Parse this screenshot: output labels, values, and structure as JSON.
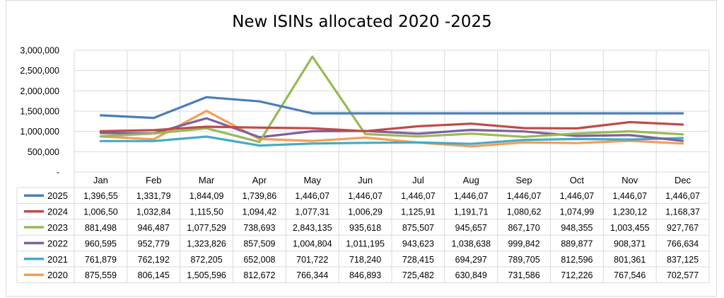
{
  "chart_data": {
    "type": "line",
    "title": "New ISINs allocated 2020 -2025",
    "xlabel": "",
    "ylabel": "",
    "categories": [
      "Jan",
      "Feb",
      "Mar",
      "Apr",
      "May",
      "Jun",
      "Jul",
      "Aug",
      "Sep",
      "Oct",
      "Nov",
      "Dec"
    ],
    "ylim": [
      0,
      3000000
    ],
    "y_ticks": [
      {
        "value": 3000000,
        "label": "3,000,000"
      },
      {
        "value": 2500000,
        "label": "2,500,000"
      },
      {
        "value": 2000000,
        "label": "2,000,000"
      },
      {
        "value": 1500000,
        "label": "1,500,000"
      },
      {
        "value": 1000000,
        "label": "1,000,000"
      },
      {
        "value": 500000,
        "label": "500,000"
      },
      {
        "value": 0,
        "label": "-"
      }
    ],
    "grid": true,
    "legend": "data-table",
    "series": [
      {
        "name": "2025",
        "color": "#4a7ebb",
        "values": [
          1396550,
          1331790,
          1844090,
          1739860,
          1446070,
          1446070,
          1446070,
          1446070,
          1446070,
          1446070,
          1446070,
          1446070
        ],
        "labels": [
          "1,396,55",
          "1,331,79",
          "1,844,09",
          "1,739,86",
          "1,446,07",
          "1,446,07",
          "1,446,07",
          "1,446,07",
          "1,446,07",
          "1,446,07",
          "1,446,07",
          "1,446,07"
        ]
      },
      {
        "name": "2024",
        "color": "#be4b48",
        "values": [
          1006500,
          1032840,
          1115500,
          1094420,
          1077310,
          1006290,
          1125910,
          1191710,
          1080620,
          1074990,
          1230120,
          1168370
        ],
        "labels": [
          "1,006,50",
          "1,032,84",
          "1,115,50",
          "1,094,42",
          "1,077,31",
          "1,006,29",
          "1,125,91",
          "1,191,71",
          "1,080,62",
          "1,074,99",
          "1,230,12",
          "1,168,37"
        ]
      },
      {
        "name": "2023",
        "color": "#98b954",
        "values": [
          881498,
          946487,
          1077529,
          738693,
          2843135,
          935618,
          875507,
          945657,
          867170,
          948355,
          1003455,
          927767
        ],
        "labels": [
          "881,498",
          "946,487",
          "1,077,529",
          "738,693",
          "2,843,135",
          "935,618",
          "875,507",
          "945,657",
          "867,170",
          "948,355",
          "1,003,455",
          "927,767"
        ]
      },
      {
        "name": "2022",
        "color": "#7d60a0",
        "values": [
          960595,
          952779,
          1323826,
          857509,
          1004804,
          1011195,
          943623,
          1038638,
          999842,
          889877,
          908371,
          766634
        ],
        "labels": [
          "960,595",
          "952,779",
          "1,323,826",
          "857,509",
          "1,004,804",
          "1,011,195",
          "943,623",
          "1,038,638",
          "999,842",
          "889,877",
          "908,371",
          "766,634"
        ]
      },
      {
        "name": "2021",
        "color": "#46aac5",
        "values": [
          761879,
          762192,
          872205,
          652008,
          701722,
          718240,
          728415,
          694297,
          789705,
          812596,
          801361,
          837125
        ],
        "labels": [
          "761,879",
          "762,192",
          "872,205",
          "652,008",
          "701,722",
          "718,240",
          "728,415",
          "694,297",
          "789,705",
          "812,596",
          "801,361",
          "837,125"
        ]
      },
      {
        "name": "2020",
        "color": "#f59d56",
        "values": [
          875559,
          806145,
          1505596,
          812672,
          766344,
          846893,
          725482,
          630849,
          731586,
          712226,
          767546,
          702577
        ],
        "labels": [
          "875,559",
          "806,145",
          "1,505,596",
          "812,672",
          "766,344",
          "846,893",
          "725,482",
          "630,849",
          "731,586",
          "712,226",
          "767,546",
          "702,577"
        ]
      }
    ]
  }
}
